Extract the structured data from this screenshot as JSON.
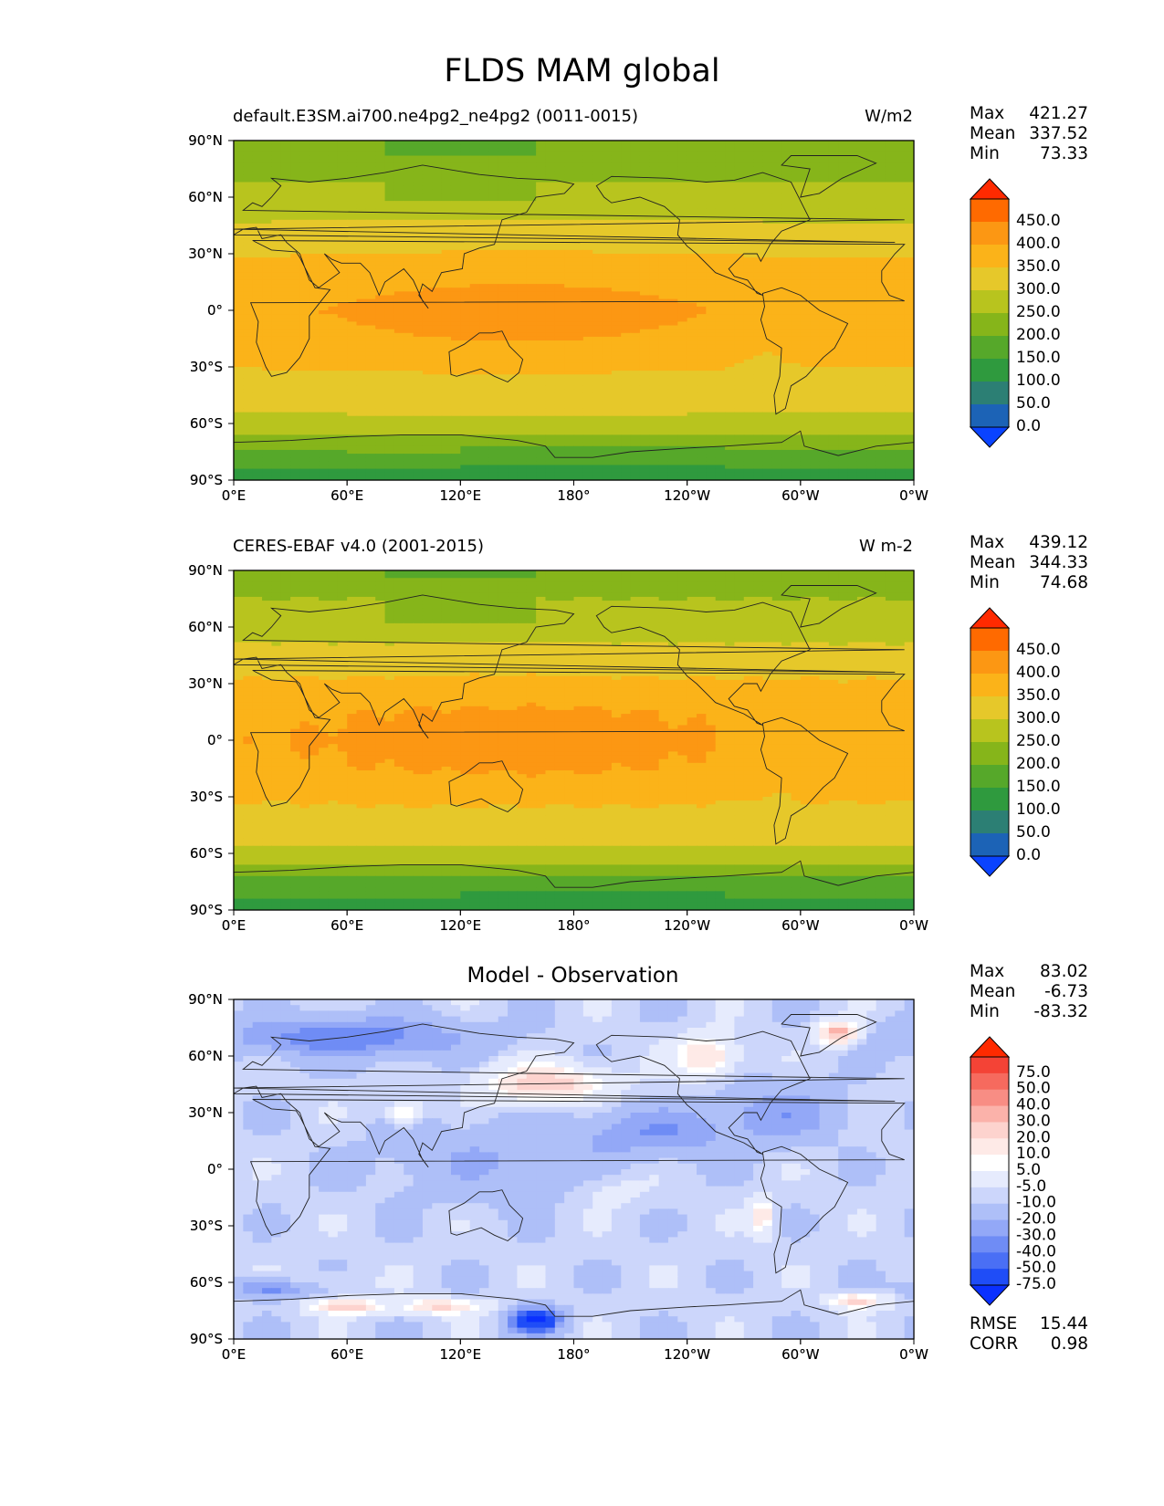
{
  "page_title": "FLDS MAM global",
  "axes": {
    "lat_ticks": [
      "90°N",
      "60°N",
      "30°N",
      "0°",
      "30°S",
      "60°S",
      "90°S"
    ],
    "lon_ticks": [
      "0°E",
      "60°E",
      "120°E",
      "180°",
      "120°W",
      "60°W",
      "0°W"
    ]
  },
  "panels": [
    {
      "title_left": "default.E3SM.ai700.ne4pg2_ne4pg2 (0011-0015)",
      "title_right": "W/m2",
      "stats": [
        {
          "label": "Max",
          "value": "421.27"
        },
        {
          "label": "Mean",
          "value": "337.52"
        },
        {
          "label": "Min",
          "value": "73.33"
        }
      ],
      "colorbar": {
        "levels": [
          "450.0",
          "400.0",
          "350.0",
          "300.0",
          "250.0",
          "200.0",
          "150.0",
          "100.0",
          "50.0",
          "0.0"
        ],
        "colors": [
          "#ff2a00",
          "#ff6a00",
          "#fc9713",
          "#fbb319",
          "#e6c82a",
          "#b8c41e",
          "#86b51a",
          "#56a82a",
          "#2f9a3e",
          "#2c7f74",
          "#1c63b6",
          "#0a43ff"
        ]
      }
    },
    {
      "title_left": "CERES-EBAF v4.0 (2001-2015)",
      "title_right": "W m-2",
      "stats": [
        {
          "label": "Max",
          "value": "439.12"
        },
        {
          "label": "Mean",
          "value": "344.33"
        },
        {
          "label": "Min",
          "value": "74.68"
        }
      ],
      "colorbar": {
        "levels": [
          "450.0",
          "400.0",
          "350.0",
          "300.0",
          "250.0",
          "200.0",
          "150.0",
          "100.0",
          "50.0",
          "0.0"
        ],
        "colors": [
          "#ff2a00",
          "#ff6a00",
          "#fc9713",
          "#fbb319",
          "#e6c82a",
          "#b8c41e",
          "#86b51a",
          "#56a82a",
          "#2f9a3e",
          "#2c7f74",
          "#1c63b6",
          "#0a43ff"
        ]
      }
    },
    {
      "title_center": "Model - Observation",
      "stats": [
        {
          "label": "Max",
          "value": "83.02"
        },
        {
          "label": "Mean",
          "value": "-6.73"
        },
        {
          "label": "Min",
          "value": "-83.32"
        }
      ],
      "extra_stats": [
        {
          "label": "RMSE",
          "value": "15.44"
        },
        {
          "label": "CORR",
          "value": "0.98"
        }
      ],
      "colorbar": {
        "levels": [
          "75.0",
          "50.0",
          "40.0",
          "30.0",
          "20.0",
          "10.0",
          "5.0",
          "-5.0",
          "-10.0",
          "-20.0",
          "-30.0",
          "-40.0",
          "-50.0",
          "-75.0"
        ],
        "colors": [
          "#ff2a00",
          "#f44336",
          "#f66a5e",
          "#f88d84",
          "#fbb2aa",
          "#fdd3ce",
          "#feeae7",
          "#ffffff",
          "#e6ebfd",
          "#ccd6fb",
          "#aebff8",
          "#93a8f7",
          "#6f8cf5",
          "#4a6ff5",
          "#1f4df7",
          "#0a30ff"
        ]
      }
    }
  ],
  "chart_data": [
    {
      "type": "heatmap",
      "title": "default.E3SM.ai700.ne4pg2_ne4pg2 (0011-0015)",
      "units": "W/m2",
      "x": [
        "0°E",
        "60°E",
        "120°E",
        "180°",
        "120°W",
        "60°W",
        "0°W"
      ],
      "y": [
        "90°N",
        "60°N",
        "30°N",
        "0°",
        "30°S",
        "60°S",
        "90°S"
      ],
      "xlim": [
        0,
        360
      ],
      "ylim": [
        -90,
        90
      ],
      "stats": {
        "max": 421.27,
        "mean": 337.52,
        "min": 73.33
      },
      "levels": [
        0,
        50,
        100,
        150,
        200,
        250,
        300,
        350,
        400,
        450
      ],
      "zonal_profile": {
        "lat": [
          90,
          75,
          60,
          45,
          30,
          15,
          0,
          -15,
          -30,
          -45,
          -60,
          -75,
          -90
        ],
        "value": [
          210,
          235,
          270,
          305,
          350,
          385,
          405,
          390,
          355,
          320,
          290,
          200,
          120
        ]
      }
    },
    {
      "type": "heatmap",
      "title": "CERES-EBAF v4.0 (2001-2015)",
      "units": "W m-2",
      "x": [
        "0°E",
        "60°E",
        "120°E",
        "180°",
        "120°W",
        "60°W",
        "0°W"
      ],
      "y": [
        "90°N",
        "60°N",
        "30°N",
        "0°",
        "30°S",
        "60°S",
        "90°S"
      ],
      "xlim": [
        0,
        360
      ],
      "ylim": [
        -90,
        90
      ],
      "stats": {
        "max": 439.12,
        "mean": 344.33,
        "min": 74.68
      },
      "levels": [
        0,
        50,
        100,
        150,
        200,
        250,
        300,
        350,
        400,
        450
      ],
      "zonal_profile": {
        "lat": [
          90,
          75,
          60,
          45,
          30,
          15,
          0,
          -15,
          -30,
          -45,
          -60,
          -75,
          -90
        ],
        "value": [
          215,
          250,
          280,
          315,
          360,
          395,
          410,
          395,
          360,
          325,
          290,
          180,
          130
        ]
      }
    },
    {
      "type": "heatmap",
      "title": "Model - Observation",
      "x": [
        "0°E",
        "60°E",
        "120°E",
        "180°",
        "120°W",
        "60°W",
        "0°W"
      ],
      "y": [
        "90°N",
        "60°N",
        "30°N",
        "0°",
        "30°S",
        "60°S",
        "90°S"
      ],
      "xlim": [
        0,
        360
      ],
      "ylim": [
        -90,
        90
      ],
      "stats": {
        "max": 83.02,
        "mean": -6.73,
        "min": -83.32,
        "rmse": 15.44,
        "corr": 0.98
      },
      "levels": [
        -75,
        -50,
        -40,
        -30,
        -20,
        -10,
        -5,
        5,
        10,
        20,
        30,
        40,
        50,
        75
      ]
    }
  ]
}
